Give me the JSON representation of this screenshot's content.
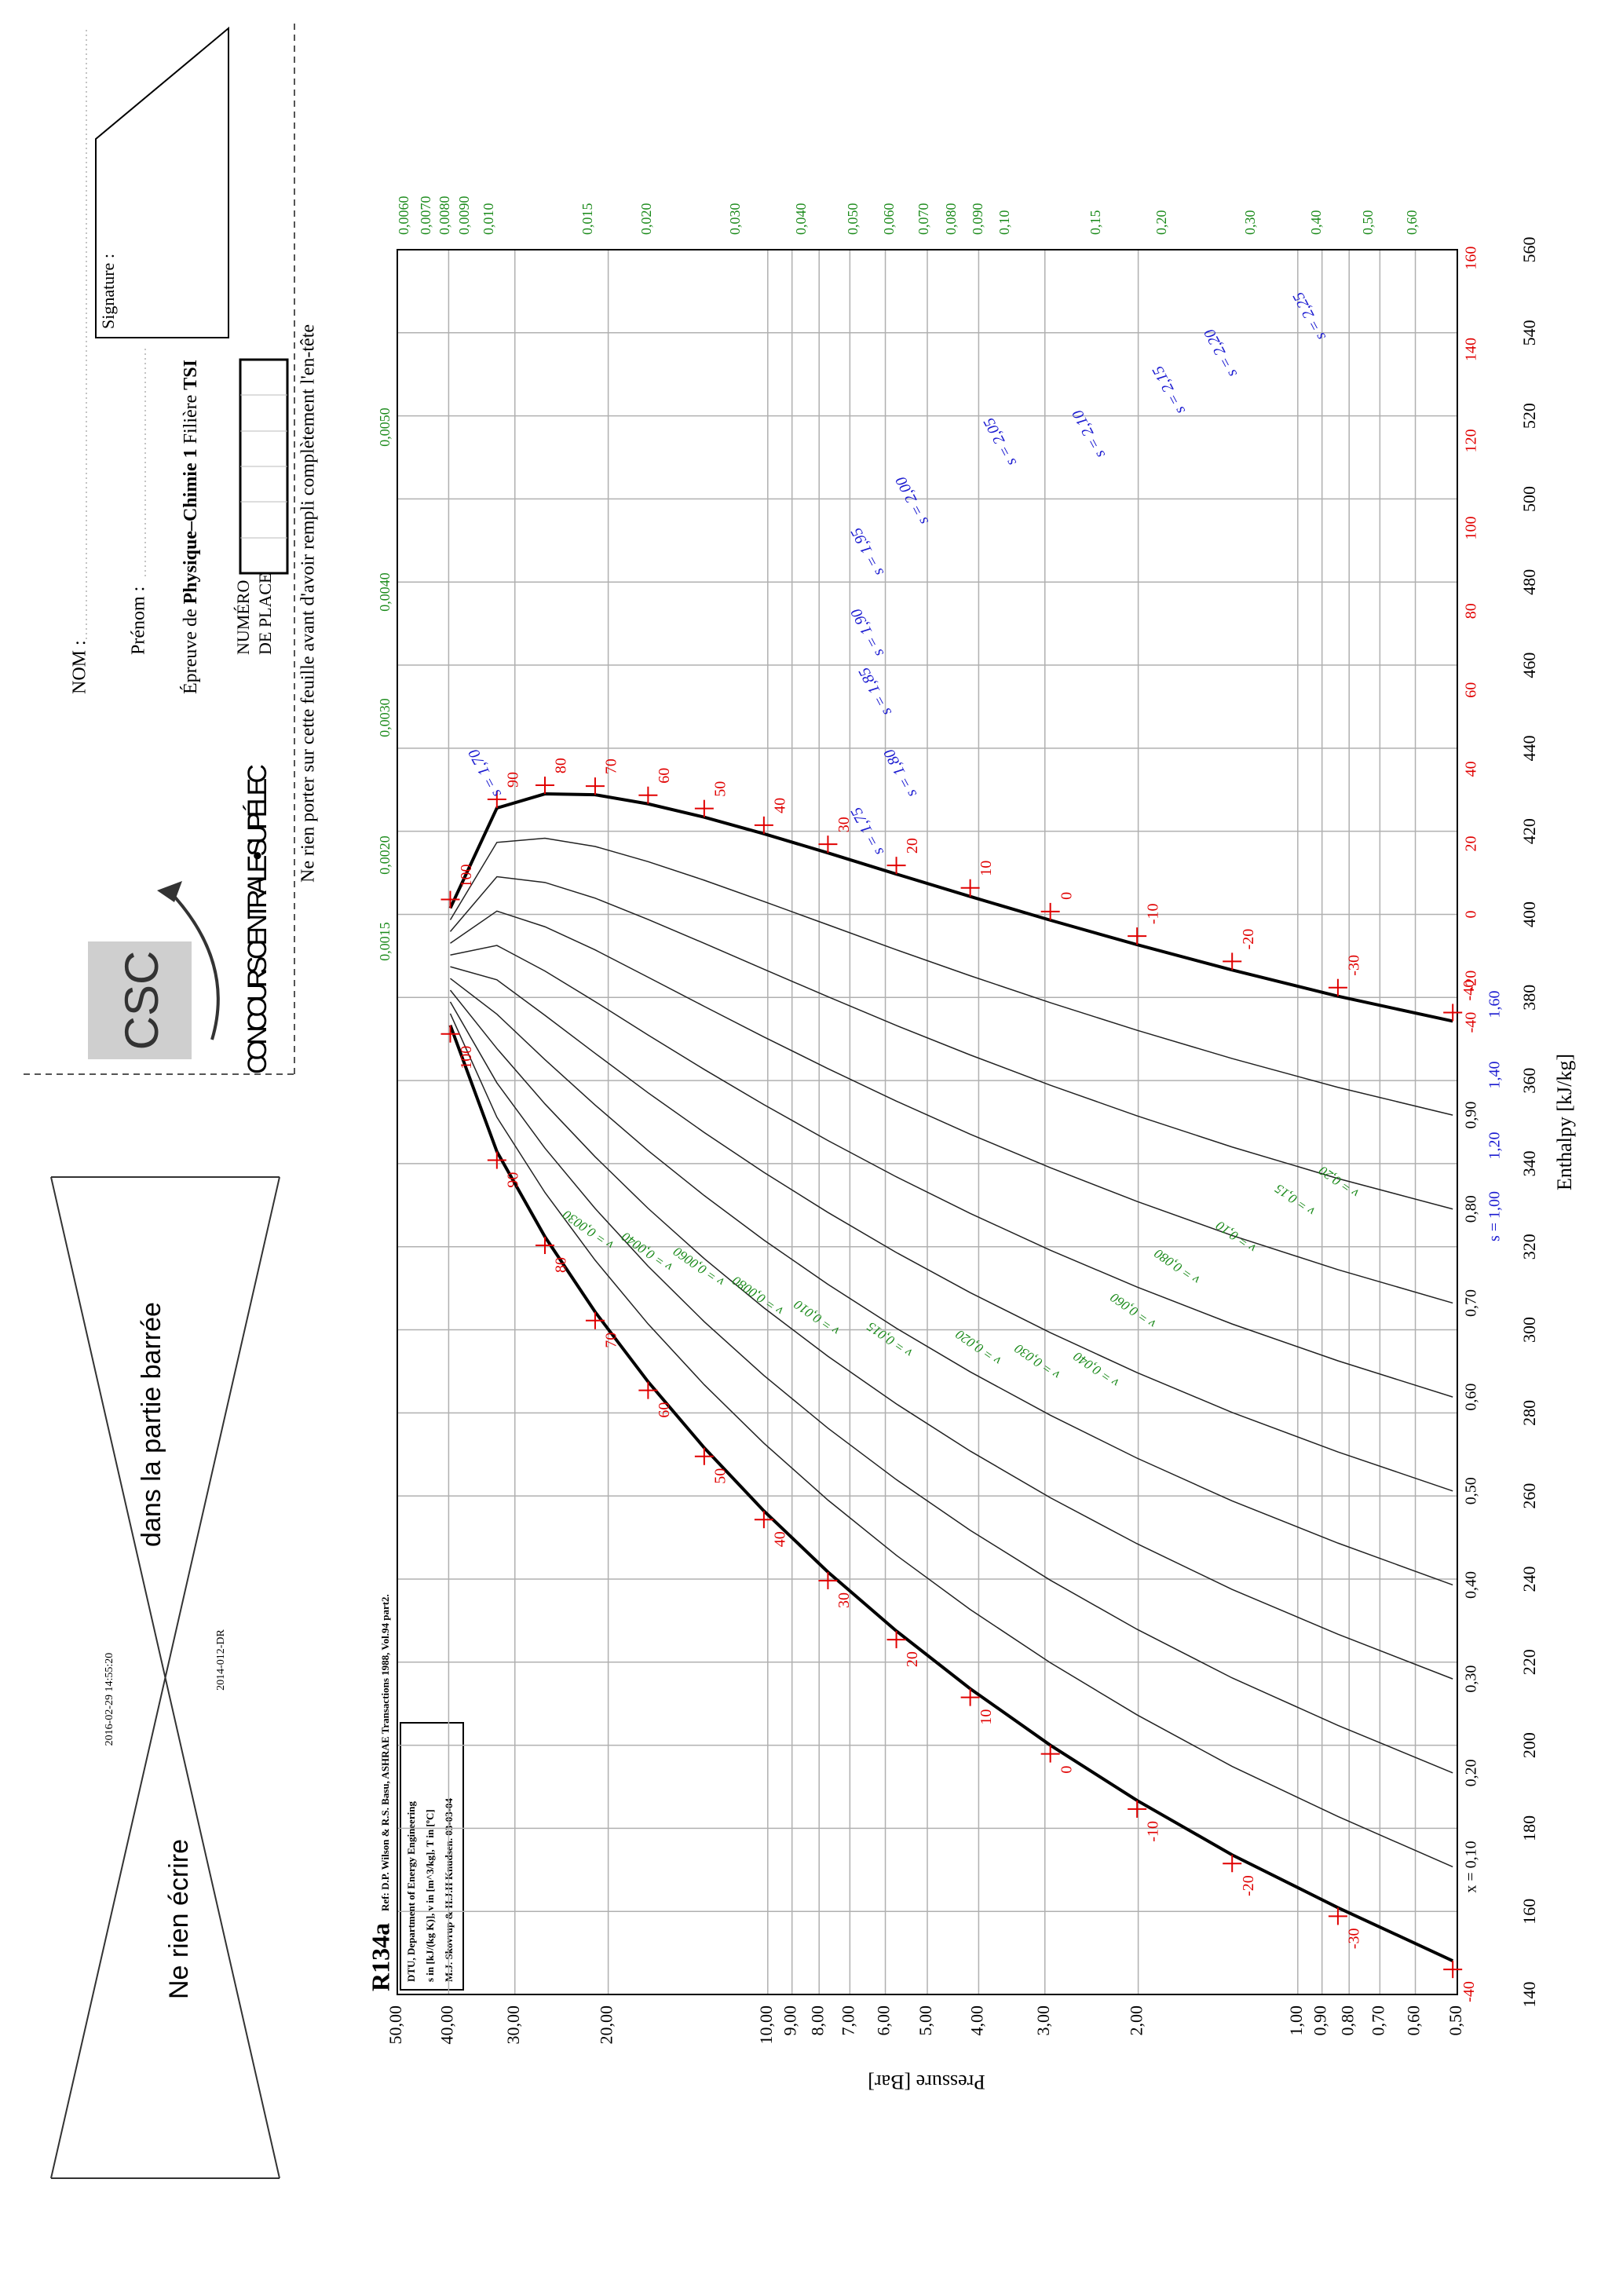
{
  "header": {
    "timestamp": "2016-02-29 14:55:20",
    "code": "2014-012-DR",
    "cross_line1": "Ne rien écrire",
    "cross_line2": "dans la partie barrée",
    "logo": "CSC",
    "contest": "CONCOURS CENTRALE•SUPÉLEC",
    "nom": "NOM :",
    "prenom": "Prénom :",
    "exam_prefix": "Épreuve de ",
    "exam_subject": "Physique–Chimie 1",
    "filiere_prefix": " Filière ",
    "filiere": "TSI",
    "place_line1": "NUMÉRO",
    "place_line2": "DE PLACE",
    "signature": "Signature :",
    "notice": "Ne rien porter sur cette feuille avant d'avoir rempli complètement l'en-tête"
  },
  "chart_data": {
    "type": "line",
    "title": "R134a",
    "subtitle": "Ref: D.P. Wilson & R.S. Basu, ASHRAE Transactions 1988, Vol.94 part2.",
    "notes": [
      "DTU, Department of Energy Engineering",
      "s in [kJ/(kg K)], v in [m^3/kg], T in [ºC]",
      "M.J. Skovrup & H.J.H Knudsen. 03-03-04"
    ],
    "x_label": "Enthalpy [kJ/kg]",
    "y_label": "Pressure [Bar]",
    "xlim": [
      140,
      560
    ],
    "xticks": [
      140,
      160,
      180,
      200,
      220,
      240,
      260,
      280,
      300,
      320,
      340,
      360,
      380,
      400,
      420,
      440,
      460,
      480,
      500,
      520,
      540,
      560
    ],
    "ylim": [
      0.5,
      50
    ],
    "y_log": true,
    "grid": true,
    "yticks": [
      {
        "value": 0.5,
        "label": "0,50"
      },
      {
        "value": 0.6,
        "label": "0,60"
      },
      {
        "value": 0.7,
        "label": "0,70"
      },
      {
        "value": 0.8,
        "label": "0,80"
      },
      {
        "value": 0.9,
        "label": "0,90"
      },
      {
        "value": 1,
        "label": "1,00"
      },
      {
        "value": 2,
        "label": "2,00"
      },
      {
        "value": 3,
        "label": "3,00"
      },
      {
        "value": 4,
        "label": "4,00"
      },
      {
        "value": 5,
        "label": "5,00"
      },
      {
        "value": 6,
        "label": "6,00"
      },
      {
        "value": 7,
        "label": "7,00"
      },
      {
        "value": 8,
        "label": "8,00"
      },
      {
        "value": 9,
        "label": "9,00"
      },
      {
        "value": 10,
        "label": "10,00"
      },
      {
        "value": 20,
        "label": "20,00"
      },
      {
        "value": 30,
        "label": "30,00"
      },
      {
        "value": 40,
        "label": "40,00"
      },
      {
        "value": 50,
        "label": "50,00"
      }
    ],
    "temperatures": [
      -40,
      -30,
      -20,
      -10,
      0,
      10,
      20,
      30,
      40,
      50,
      60,
      70,
      80,
      90,
      100
    ],
    "isotherm_color": "#e00000",
    "series": [
      {
        "color": "#000000",
        "x": [
          148.1,
          160.9,
          173.6,
          186.7,
          200.0,
          213.6,
          227.5,
          241.7,
          256.4,
          271.6,
          287.5,
          304.3,
          322.4,
          342.9,
          373.3
        ],
        "values": [
          0.51,
          0.84,
          1.33,
          2.01,
          2.93,
          4.15,
          5.72,
          7.7,
          10.17,
          13.18,
          16.82,
          21.17,
          26.33,
          32.44,
          39.72
        ]
      },
      {
        "color": "#000000",
        "x": [
          374.3,
          380.3,
          386.6,
          392.7,
          398.6,
          404.3,
          409.7,
          414.8,
          419.4,
          423.4,
          426.6,
          428.8,
          429.0,
          425.6,
          401.5
        ],
        "values": [
          0.51,
          0.84,
          1.33,
          2.01,
          2.93,
          4.15,
          5.72,
          7.7,
          10.17,
          13.18,
          16.82,
          21.17,
          26.33,
          32.44,
          39.72
        ]
      }
    ],
    "quality": [
      {
        "value": 0.1,
        "label": "x = 0,10"
      },
      {
        "value": 0.2,
        "label": "0,20"
      },
      {
        "value": 0.3,
        "label": "0,30"
      },
      {
        "value": 0.4,
        "label": "0,40"
      },
      {
        "value": 0.5,
        "label": "0,50"
      },
      {
        "value": 0.6,
        "label": "0,60"
      },
      {
        "value": 0.7,
        "label": "0,70"
      },
      {
        "value": 0.8,
        "label": "0,80"
      },
      {
        "value": 0.9,
        "label": "0,90"
      }
    ],
    "bottom_isotherms": {
      "temperatures": [
        -40,
        -20,
        0,
        20,
        40,
        60,
        80,
        100,
        120,
        140,
        160
      ],
      "x": [
        374,
        384,
        400,
        417,
        435,
        454,
        473,
        493,
        514,
        536,
        558
      ]
    },
    "entropy_color": "#1a1ad0",
    "volume_color": "#1a8a1a",
    "entropy_labels": [
      "s = 1,00",
      "1,20",
      "1,40",
      "1,60"
    ],
    "entropy_inner_labels": [
      "s = 1,70",
      "s = 1,75",
      "s = 1,80",
      "s = 1,85",
      "s = 1,90",
      "s = 1,95",
      "s = 2,00",
      "s = 2,05",
      "s = 2,10",
      "s = 2,15",
      "s = 2,20",
      "s = 2,25"
    ],
    "volume_right_labels": [
      "0,0060",
      "0,0070",
      "0,0080",
      "0,0090",
      "0,010",
      "0,015",
      "0,020",
      "0,030",
      "0,040",
      "0,050",
      "0,060",
      "0,070",
      "0,080",
      "0,090",
      "0,10",
      "0,15",
      "0,20",
      "0,30",
      "0,40",
      "0,50",
      "0,60"
    ],
    "volume_top_labels": [
      "0,0015",
      "0,0020",
      "0,0030",
      "0,0040",
      "0,0050"
    ],
    "volume_inner_labels": [
      "v = 0,0030",
      "v = 0,0040",
      "v = 0,0060",
      "v = 0,0080",
      "v = 0,010",
      "v = 0,015",
      "v = 0,020",
      "v = 0,030",
      "v = 0,040",
      "v = 0,060",
      "v = 0,080",
      "v = 0,10",
      "v = 0,15",
      "v = 0,20"
    ]
  }
}
